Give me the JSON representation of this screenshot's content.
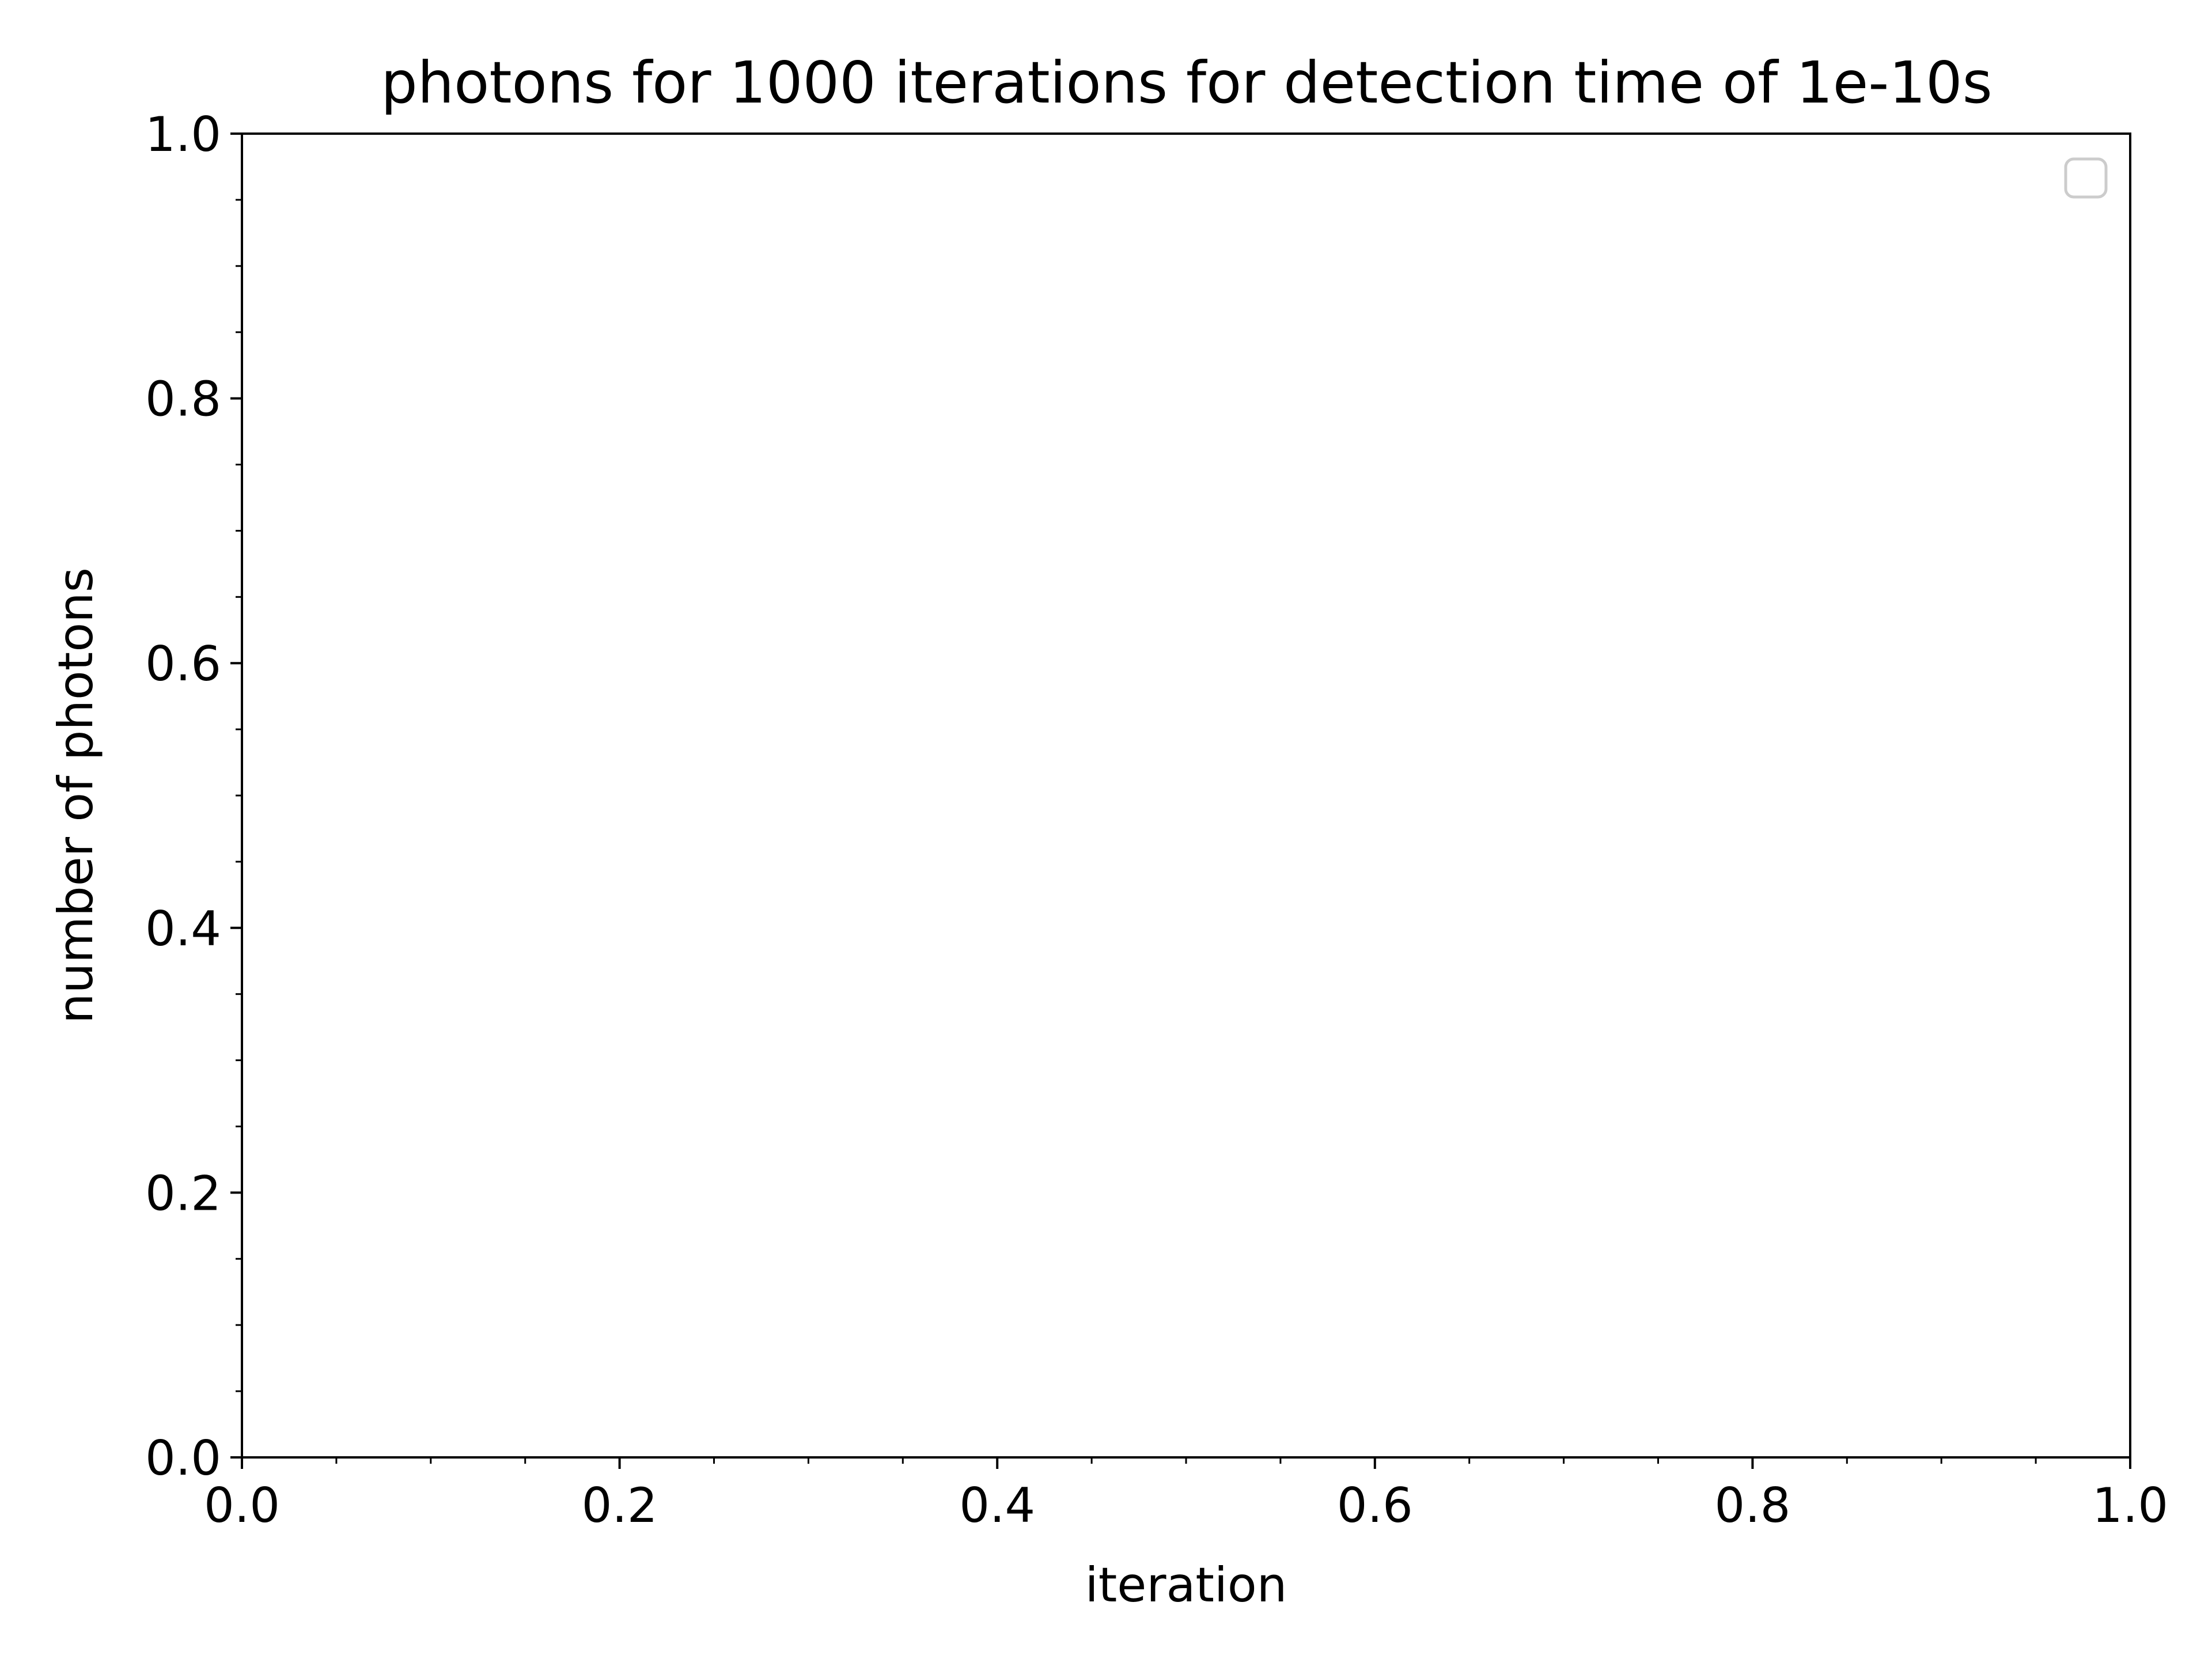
{
  "chart_data": {
    "type": "line",
    "title": "photons for 1000 iterations for detection time of 1e-10s",
    "xlabel": "iteration",
    "ylabel": "number of photons",
    "xlim": [
      0.0,
      1.0
    ],
    "ylim": [
      0.0,
      1.0
    ],
    "x_ticks": [
      "0.0",
      "0.2",
      "0.4",
      "0.6",
      "0.8",
      "1.0"
    ],
    "y_ticks": [
      "0.0",
      "0.2",
      "0.4",
      "0.6",
      "0.8",
      "1.0"
    ],
    "x_minor_tick_step": 0.05,
    "y_minor_tick_step": 0.05,
    "series": [],
    "grid": false,
    "legend": {
      "placement": "upper right",
      "entries": []
    }
  },
  "style": {
    "axis_color": "#000000",
    "legend_border_color": "#cccccc",
    "background": "#ffffff"
  }
}
